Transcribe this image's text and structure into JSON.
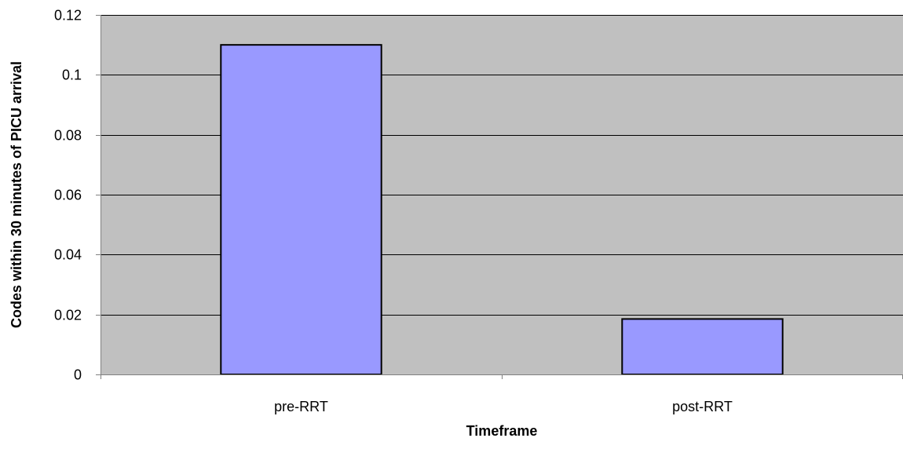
{
  "chart_data": {
    "type": "bar",
    "title": "",
    "xlabel": "Timeframe",
    "ylabel": "Codes within 30 minutes of PICU arrival",
    "categories": [
      "pre-RRT",
      "post-RRT"
    ],
    "values": [
      0.11,
      0.0185
    ],
    "ylim": [
      0,
      0.12
    ],
    "yticks": [
      0,
      0.02,
      0.04,
      0.06,
      0.08,
      0.1,
      0.12
    ],
    "ytick_labels": [
      "0",
      "0.02",
      "0.04",
      "0.06",
      "0.08",
      "0.1",
      "0.12"
    ],
    "grid": true,
    "legend": "none",
    "colors": {
      "plot_background": "#c0c0c0",
      "bar_fill": "#9999ff",
      "bar_stroke": "#000000",
      "gridline": "#000000",
      "axis": "#808080",
      "text": "#000000"
    }
  }
}
